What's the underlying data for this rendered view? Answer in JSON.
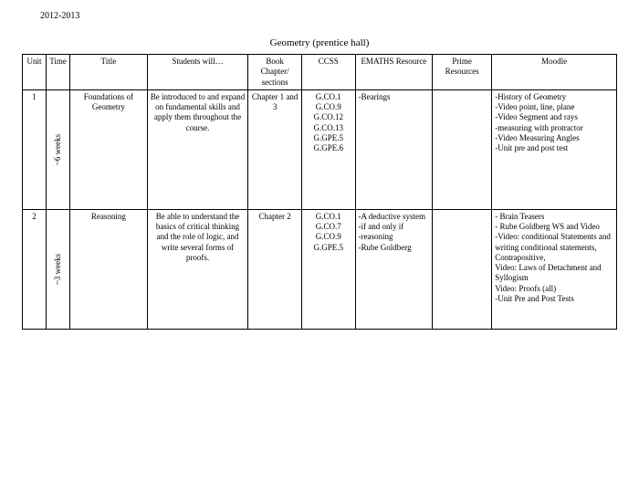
{
  "header": {
    "year": "2012-2013",
    "title": "Geometry (prentice hall)"
  },
  "columns": {
    "unit": "Unit",
    "time": "Time",
    "title": "Title",
    "students_will": "Students will…",
    "book": "Book Chapter/ sections",
    "ccss": "CCSS",
    "emaths": "EMATHS Resource",
    "prime": "Prime Resources",
    "moodle": "Moodle"
  },
  "rows": [
    {
      "unit": "1",
      "time": "~6 weeks",
      "title": "Foundations of Geometry",
      "students_will": "Be introduced to and expand on fundamental skills and apply them throughout the course.",
      "book": "Chapter 1 and 3",
      "ccss": "G.CO.1\nG.CO.9\nG.CO.12\nG.CO.13\nG.GPE.5\nG.GPE.6",
      "emaths": "-Bearings",
      "prime": "",
      "moodle": "-History of Geometry\n-Video point, line, plane\n-Video Segment and rays\n-measuring with protractor\n-Video Measuring Angles\n-Unit pre and post test"
    },
    {
      "unit": "2",
      "time": "~3 weeks",
      "title": "Reasoning",
      "students_will": "Be able to understand the basics of critical thinking and the role of logic, and write several forms of proofs.",
      "book": "Chapter 2",
      "ccss": "G.CO.1\nG.CO.7\nG.CO.9\nG.GPE.5",
      "emaths": "-A deductive system\n-if and only if\n-reasoning\n-Rube Goldberg",
      "prime": "",
      "moodle": "- Brain Teasers\n- Rube Goldberg WS and Video\n-Video: conditional Statements and writing conditional statements, Contrapositive,\nVideo: Laws of Detachment and Syllogism\nVideo: Proofs (all)\n-Unit Pre and Post Tests"
    }
  ]
}
